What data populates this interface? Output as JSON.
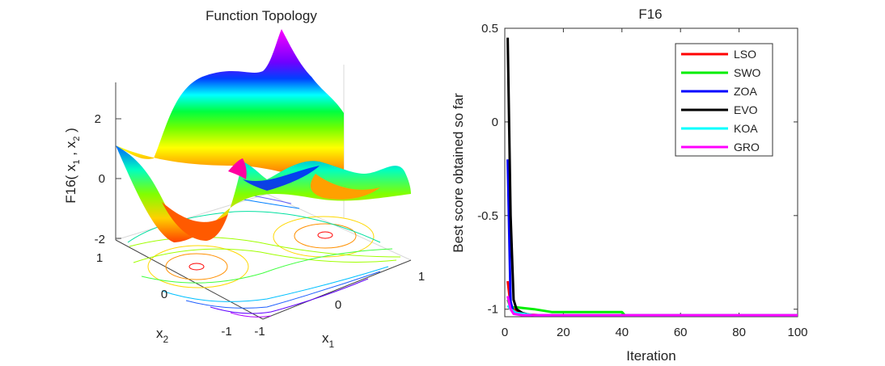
{
  "left_plot": {
    "title": "Function Topology",
    "zlabel_main": "F16( x",
    "zlabel_mid": " , x",
    "zlabel_end": " )",
    "zlabel_sub1": "1",
    "zlabel_sub2": "2",
    "x1_label": "x",
    "x1_sub": "1",
    "x2_label": "x",
    "x2_sub": "2",
    "z_ticks": [
      "2",
      "0",
      "-2"
    ],
    "x1_ticks": [
      "-1",
      "0",
      "1"
    ],
    "x2_ticks": [
      "1",
      "0",
      "-1"
    ],
    "colormap": [
      "#ff0000",
      "#ff8000",
      "#ffff00",
      "#80ff00",
      "#00ff00",
      "#00ffff",
      "#0000ff",
      "#8000ff",
      "#ff00ff"
    ]
  },
  "chart_data": {
    "type": "line",
    "title": "F16",
    "xlabel": "Iteration",
    "ylabel": "Best score obtained so far",
    "xlim": [
      0,
      100
    ],
    "ylim": [
      -1.04,
      0.5
    ],
    "x_ticks": [
      0,
      20,
      40,
      60,
      80,
      100
    ],
    "y_ticks": [
      0.5,
      0,
      -0.5,
      -1
    ],
    "x_tick_labels": [
      "0",
      "20",
      "40",
      "60",
      "80",
      "100"
    ],
    "y_tick_labels": [
      "0.5",
      "0",
      "-0.5",
      "-1"
    ],
    "legend_position": "top-right",
    "series": [
      {
        "name": "LSO",
        "color": "#ff0000",
        "x": [
          1,
          2,
          3,
          5,
          8,
          12,
          100
        ],
        "y": [
          -0.85,
          -0.98,
          -1.0,
          -1.02,
          -1.028,
          -1.0316,
          -1.0316
        ]
      },
      {
        "name": "SWO",
        "color": "#00ee00",
        "x": [
          1,
          2,
          4,
          10,
          16,
          40,
          41,
          100
        ],
        "y": [
          -0.95,
          -0.99,
          -0.99,
          -1.0,
          -1.015,
          -1.015,
          -1.0316,
          -1.0316
        ]
      },
      {
        "name": "ZOA",
        "color": "#0000ff",
        "x": [
          1,
          2,
          3,
          5,
          8,
          100
        ],
        "y": [
          -0.2,
          -0.96,
          -1.02,
          -1.028,
          -1.0316,
          -1.0316
        ]
      },
      {
        "name": "EVO",
        "color": "#000000",
        "x": [
          1,
          2,
          3,
          4,
          6,
          9,
          100
        ],
        "y": [
          0.45,
          -0.5,
          -0.95,
          -1.0,
          -1.02,
          -1.0316,
          -1.0316
        ]
      },
      {
        "name": "KOA",
        "color": "#00ffff",
        "x": [
          1,
          2,
          4,
          10,
          100
        ],
        "y": [
          -0.98,
          -1.0,
          -1.02,
          -1.0316,
          -1.0316
        ]
      },
      {
        "name": "GRO",
        "color": "#ff00ff",
        "x": [
          1,
          2,
          3,
          6,
          100
        ],
        "y": [
          -0.93,
          -1.0,
          -1.025,
          -1.0316,
          -1.0316
        ]
      }
    ]
  }
}
